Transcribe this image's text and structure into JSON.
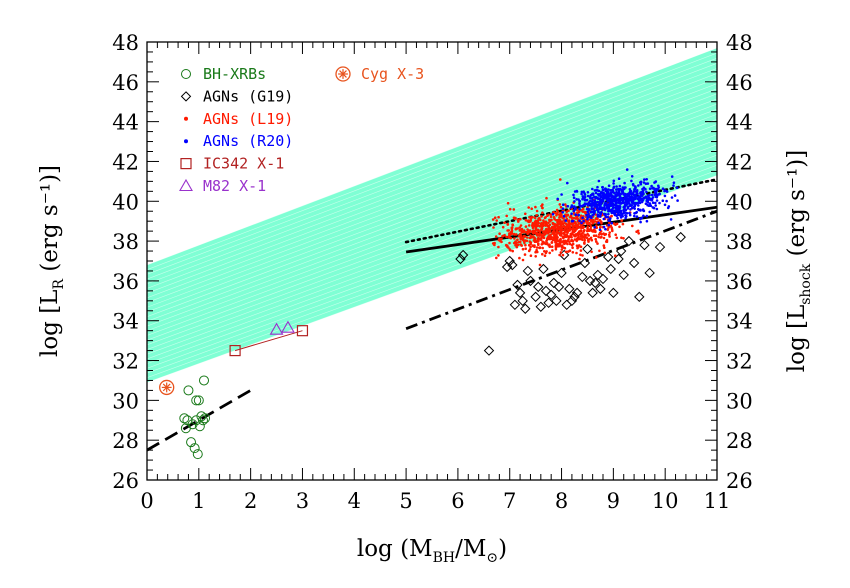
{
  "chart_data": {
    "type": "scatter",
    "xlabel": {
      "prefix": "log (M",
      "sub1": "BH",
      "mid": "/M",
      "sub2": "⊙",
      "suffix": ")"
    },
    "ylabel_left": {
      "prefix": "log [L",
      "sub": "R",
      "suffix": " (erg s⁻¹)]"
    },
    "ylabel_right": {
      "prefix": "log [L",
      "sub": "shock",
      "suffix": " (erg s⁻¹)]"
    },
    "xlim": [
      0,
      11
    ],
    "ylim": [
      26,
      48
    ],
    "xticks": [
      "0",
      "1",
      "2",
      "3",
      "4",
      "5",
      "6",
      "7",
      "8",
      "9",
      "10",
      "11"
    ],
    "yticks": [
      "26",
      "28",
      "30",
      "32",
      "34",
      "36",
      "38",
      "40",
      "42",
      "44",
      "46",
      "48"
    ],
    "colors": {
      "bhxrb": "#1a7a1a",
      "agn_g19": "#000000",
      "agn_l19": "#ff1a00",
      "agn_r20": "#0000ff",
      "ic342": "#b22222",
      "m82": "#9932cc",
      "cygx3": "#e8541e",
      "band": "#7fffd4"
    },
    "legend": [
      {
        "label": "BH-XRBs",
        "marker": "circle",
        "color": "#1a7a1a"
      },
      {
        "label": "AGNs (G19)",
        "marker": "diamond",
        "color": "#000000"
      },
      {
        "label": "AGNs (L19)",
        "marker": "dot",
        "color": "#ff1a00"
      },
      {
        "label": "AGNs (R20)",
        "marker": "dot",
        "color": "#0000ff"
      },
      {
        "label": "IC342 X-1",
        "marker": "square",
        "color": "#b22222"
      },
      {
        "label": "M82 X-1",
        "marker": "triangle",
        "color": "#9932cc"
      },
      {
        "label": "Cyg X-3",
        "marker": "circle-star",
        "color": "#e8541e"
      }
    ],
    "band": {
      "x": [
        0,
        11
      ],
      "lower": [
        30.9,
        41.3
      ],
      "upper": [
        36.8,
        47.7
      ]
    },
    "lines": [
      {
        "name": "dashed",
        "style": "dashed",
        "x": [
          0,
          2
        ],
        "y": [
          27.5,
          30.5
        ]
      },
      {
        "name": "dotted",
        "style": "dotted",
        "x": [
          5,
          11
        ],
        "y": [
          37.95,
          41.1
        ]
      },
      {
        "name": "solid",
        "style": "solid",
        "x": [
          5,
          11
        ],
        "y": [
          37.45,
          39.7
        ]
      },
      {
        "name": "dashdot",
        "style": "dashdot",
        "x": [
          5,
          11
        ],
        "y": [
          33.6,
          39.5
        ]
      }
    ],
    "bhxrbs": {
      "x": [
        0.72,
        0.75,
        0.8,
        0.85,
        0.88,
        0.92,
        0.95,
        0.98,
        1.0,
        1.02,
        1.05,
        1.08,
        1.1,
        0.78,
        0.95,
        1.12
      ],
      "y": [
        29.1,
        28.6,
        30.5,
        27.9,
        28.8,
        27.6,
        29.0,
        27.3,
        30.0,
        28.7,
        29.2,
        29.0,
        31.0,
        29.0,
        30.0,
        29.1
      ]
    },
    "cygx3": {
      "x": [
        0.38
      ],
      "y": [
        30.65
      ]
    },
    "ic342": {
      "x": [
        1.7,
        3.0
      ],
      "y": [
        32.5,
        33.5
      ]
    },
    "m82": {
      "x": [
        2.5,
        2.72
      ],
      "y": [
        33.55,
        33.65
      ]
    },
    "agn_g19": {
      "x": [
        6.05,
        6.1,
        6.6,
        6.95,
        7.0,
        7.05,
        7.1,
        7.2,
        7.25,
        7.3,
        7.4,
        7.5,
        7.55,
        7.6,
        7.65,
        7.7,
        7.8,
        7.85,
        7.9,
        7.95,
        8.0,
        8.05,
        8.1,
        8.15,
        8.2,
        8.3,
        8.4,
        8.5,
        8.55,
        8.6,
        8.65,
        8.7,
        8.75,
        8.8,
        8.9,
        9.0,
        9.1,
        9.2,
        9.3,
        9.4,
        9.5,
        9.6,
        9.7,
        9.9,
        10.3,
        7.15,
        7.35,
        7.75,
        8.25,
        8.45,
        8.95,
        9.15
      ],
      "y": [
        37.1,
        37.3,
        32.5,
        36.7,
        37.0,
        36.8,
        34.8,
        35.4,
        35.0,
        34.6,
        36.0,
        35.2,
        35.7,
        34.7,
        36.6,
        35.5,
        35.3,
        35.9,
        35.0,
        35.7,
        36.4,
        37.3,
        34.8,
        35.6,
        35.0,
        35.4,
        36.2,
        37.6,
        36.0,
        35.4,
        35.9,
        36.3,
        35.6,
        36.1,
        37.2,
        35.4,
        37.1,
        36.3,
        38.0,
        36.9,
        35.2,
        37.8,
        36.4,
        37.7,
        38.2,
        35.8,
        36.5,
        34.9,
        35.2,
        36.9,
        36.6,
        37.5
      ]
    },
    "agn_l19": {
      "count": 900,
      "xc": 7.95,
      "yc": 38.55,
      "sx": 0.55,
      "sy": 0.55,
      "xmin": 6.65,
      "xmax": 9.6,
      "seed": 11
    },
    "agn_r20": {
      "count": 700,
      "xc": 9.05,
      "yc": 40.0,
      "sx": 0.45,
      "sy": 0.45,
      "xmin": 7.6,
      "xmax": 10.3,
      "seed": 29
    }
  }
}
